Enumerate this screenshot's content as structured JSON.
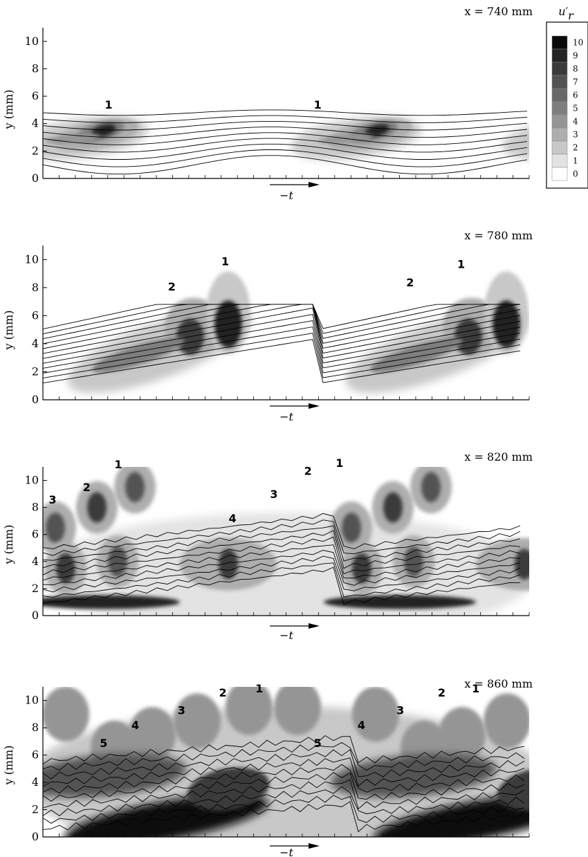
{
  "figure": {
    "ylabel": "y (mm)",
    "time_arrow_label": "−t",
    "legend": {
      "title": "u′",
      "title_subscript": "r",
      "levels": [
        "10",
        "9",
        "8",
        "7",
        "6",
        "5",
        "4",
        "3",
        "2",
        "1",
        "0"
      ],
      "colors": [
        "#0a0a0a",
        "#232323",
        "#3a3a3a",
        "#525252",
        "#686868",
        "#7e7e7e",
        "#959595",
        "#aeaeae",
        "#c8c8c8",
        "#e3e3e3",
        "#ffffff"
      ]
    }
  },
  "chart_data": [
    {
      "type": "heatmap",
      "station": "x = 740 mm",
      "xlabel": "−t",
      "ylabel": "y (mm)",
      "ylim": [
        0,
        11
      ],
      "yticks": [
        "0",
        "2",
        "4",
        "6",
        "8",
        "10"
      ],
      "x_tick_count": 31,
      "periods_shown": 2.5,
      "structure_labels": [
        {
          "text": "1",
          "t": 0.135,
          "y": 5.1
        },
        {
          "text": "1",
          "t": 0.565,
          "y": 5.1
        }
      ]
    },
    {
      "type": "heatmap",
      "station": "x = 780 mm",
      "xlabel": "−t",
      "ylabel": "y (mm)",
      "ylim": [
        0,
        11
      ],
      "yticks": [
        "0",
        "2",
        "4",
        "6",
        "8",
        "10"
      ],
      "x_tick_count": 31,
      "periods_shown": 2.0,
      "structure_labels": [
        {
          "text": "2",
          "t": 0.265,
          "y": 7.8
        },
        {
          "text": "1",
          "t": 0.375,
          "y": 9.6
        },
        {
          "text": "2",
          "t": 0.755,
          "y": 8.1
        },
        {
          "text": "1",
          "t": 0.86,
          "y": 9.4
        }
      ]
    },
    {
      "type": "heatmap",
      "station": "x = 820 mm",
      "xlabel": "−t",
      "ylabel": "y (mm)",
      "ylim": [
        0,
        11
      ],
      "yticks": [
        "0",
        "2",
        "4",
        "6",
        "8",
        "10"
      ],
      "x_tick_count": 31,
      "periods_shown": 2.0,
      "structure_labels": [
        {
          "text": "3",
          "t": 0.02,
          "y": 8.3
        },
        {
          "text": "2",
          "t": 0.09,
          "y": 9.2
        },
        {
          "text": "1",
          "t": 0.155,
          "y": 10.9
        },
        {
          "text": "4",
          "t": 0.39,
          "y": 6.9
        },
        {
          "text": "3",
          "t": 0.475,
          "y": 8.7
        },
        {
          "text": "2",
          "t": 0.545,
          "y": 10.4
        },
        {
          "text": "1",
          "t": 0.61,
          "y": 11.0
        }
      ]
    },
    {
      "type": "heatmap",
      "station": "x = 860 mm",
      "xlabel": "−t",
      "ylabel": "y (mm)",
      "ylim": [
        0,
        11
      ],
      "yticks": [
        "0",
        "2",
        "4",
        "6",
        "8",
        "10"
      ],
      "x_tick_count": 31,
      "periods_shown": 2.0,
      "structure_labels": [
        {
          "text": "5",
          "t": 0.125,
          "y": 6.6
        },
        {
          "text": "4",
          "t": 0.19,
          "y": 7.9
        },
        {
          "text": "3",
          "t": 0.285,
          "y": 9.0
        },
        {
          "text": "2",
          "t": 0.37,
          "y": 10.3
        },
        {
          "text": "1",
          "t": 0.445,
          "y": 10.6
        },
        {
          "text": "5",
          "t": 0.565,
          "y": 6.6
        },
        {
          "text": "4",
          "t": 0.655,
          "y": 7.9
        },
        {
          "text": "3",
          "t": 0.735,
          "y": 9.0
        },
        {
          "text": "2",
          "t": 0.82,
          "y": 10.3
        },
        {
          "text": "1",
          "t": 0.89,
          "y": 10.6
        }
      ]
    }
  ]
}
